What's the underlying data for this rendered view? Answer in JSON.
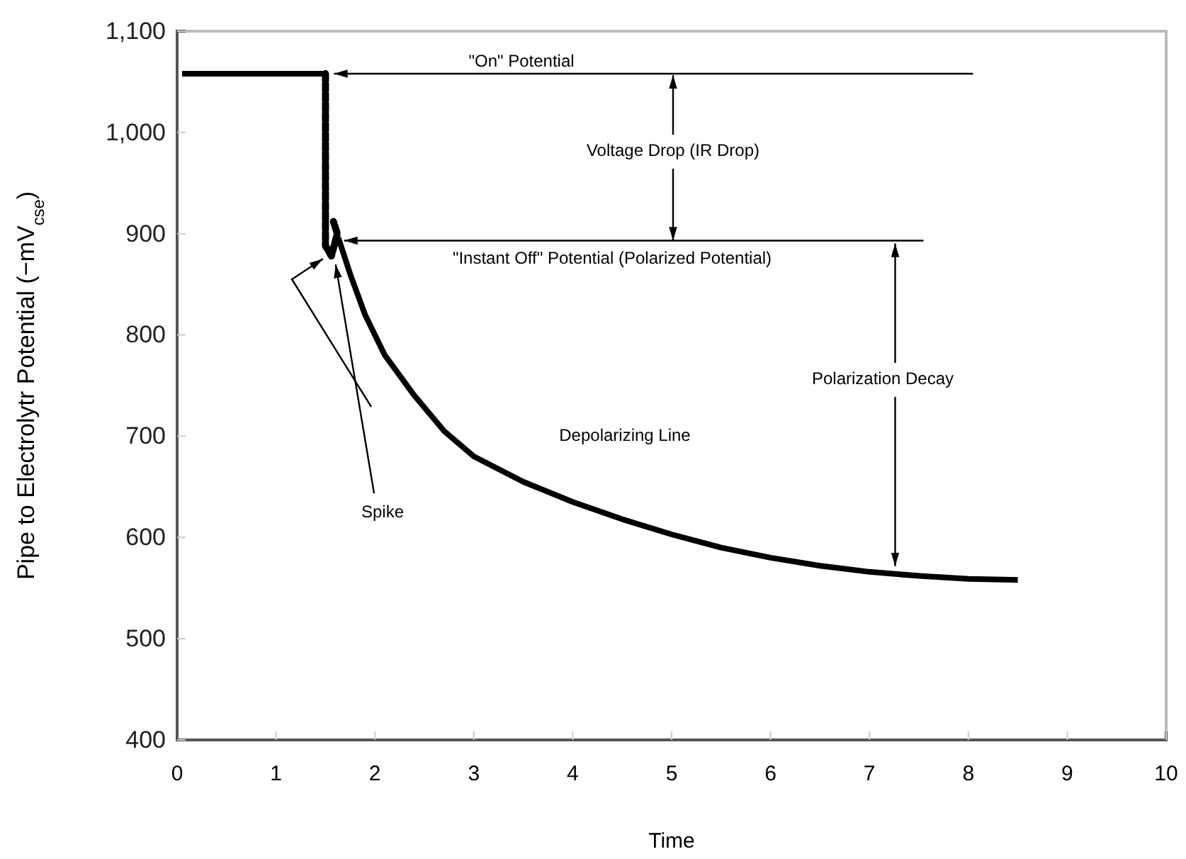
{
  "chart_data": {
    "type": "line",
    "xlabel": "Time",
    "ylabel": "Pipe to Electrolytr  Potential (−mV$_{cse}$)",
    "xlim": [
      0,
      10
    ],
    "xticks": [
      0,
      1,
      2,
      3,
      4,
      5,
      6,
      7,
      8,
      9,
      10
    ],
    "ylim": [
      400,
      1100
    ],
    "yticks": [
      400,
      500,
      600,
      700,
      800,
      900,
      {
        "value": 1000,
        "label": "1,000"
      },
      {
        "value": 1100,
        "label": "1,100"
      }
    ],
    "grid": false,
    "marker": "none",
    "series": [
      {
        "color": "#000000",
        "line_style": "solid",
        "x": [
          0.05,
          1.5
        ],
        "values": [
          1058,
          1058
        ]
      },
      {
        "color": "#000000",
        "line_style": "dashed",
        "x": [
          1.5,
          1.5,
          1.56,
          1.62,
          1.58
        ],
        "values": [
          1058,
          888,
          878,
          900,
          912
        ]
      },
      {
        "color": "#000000",
        "line_style": "solid",
        "x": [
          1.63,
          1.75,
          1.9,
          2.1,
          2.4,
          2.7,
          3.0,
          3.5,
          4.0,
          4.5,
          5.0,
          5.5,
          6.0,
          6.5,
          7.0,
          7.5,
          8.0,
          8.5
        ],
        "values": [
          896,
          860,
          820,
          780,
          740,
          705,
          680,
          655,
          635,
          618,
          603,
          590,
          580,
          572,
          566,
          562,
          559,
          558
        ]
      }
    ],
    "annotations": [
      "\"On\" Potential",
      "Voltage Drop (IR Drop)",
      "\"Instant Off\" Potential (Polarized Potential)",
      {
        "text": "Polarization Decay",
        "x": 7.26,
        "y": 566
      },
      "Depolarizing Line",
      {
        "text": "Spike",
        "x": 1.56,
        "y": 878
      }
    ]
  }
}
